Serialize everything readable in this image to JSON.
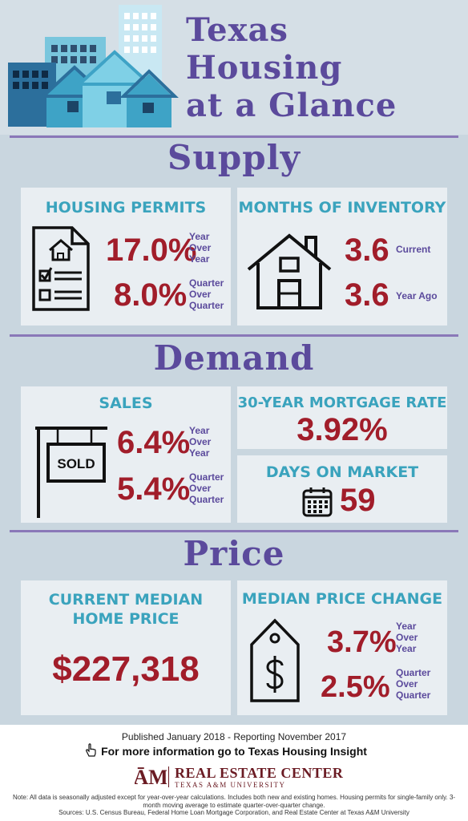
{
  "header": {
    "title_lines": [
      "Texas",
      "Housing",
      "at a Glance"
    ]
  },
  "sections": {
    "supply": "Supply",
    "demand": "Demand",
    "price": "Price"
  },
  "supply": {
    "permits": {
      "title": "Housing Permits",
      "yoy_value": "17.0%",
      "yoy_label": [
        "Year",
        "Over",
        "Year"
      ],
      "qoq_value": "8.0%",
      "qoq_label": [
        "Quarter",
        "Over",
        "Quarter"
      ]
    },
    "inventory": {
      "title": "Months of Inventory",
      "current_value": "3.6",
      "current_label": "Current",
      "ago_value": "3.6",
      "ago_label": "Year Ago"
    }
  },
  "demand": {
    "sales": {
      "title": "Sales",
      "sign": "SOLD",
      "yoy_value": "6.4%",
      "yoy_label": [
        "Year",
        "Over",
        "Year"
      ],
      "qoq_value": "5.4%",
      "qoq_label": [
        "Quarter",
        "Over",
        "Quarter"
      ]
    },
    "mortgage": {
      "title": "30-Year Mortgage Rate",
      "value": "3.92%"
    },
    "days": {
      "title": "Days on Market",
      "value": "59"
    }
  },
  "price": {
    "median": {
      "title_lines": [
        "Current Median",
        "Home Price"
      ],
      "value": "$227,318"
    },
    "change": {
      "title": "Median Price Change",
      "yoy_value": "3.7%",
      "yoy_label": [
        "Year",
        "Over",
        "Year"
      ],
      "qoq_value": "2.5%",
      "qoq_label": [
        "Quarter",
        "Over",
        "Quarter"
      ]
    }
  },
  "footer": {
    "published": "Published January 2018 - Reporting November 2017",
    "more_info": "For more information go to Texas Housing Insight",
    "org_name": "REAL ESTATE CENTER",
    "org_sub": "TEXAS A&M UNIVERSITY",
    "note": "Note: All data is seasonally adjusted except for year-over-year calculations. Includes both new and existing homes. Housing permits for single-family only. 3-month moving average to estimate quarter-over-quarter change.",
    "sources": "Sources: U.S. Census Bureau, Federal Home Loan Mortgage Corporation, and Real Estate Center at Texas A&M University"
  },
  "colors": {
    "purple": "#5b4a9c",
    "teal": "#3aa3bd",
    "maroon": "#a11d2a"
  },
  "icons": [
    "buildings-icon",
    "document-house-icon",
    "house-outline-icon",
    "sold-sign-icon",
    "calendar-icon",
    "price-tag-icon",
    "pointer-hand-icon",
    "atm-logo"
  ]
}
